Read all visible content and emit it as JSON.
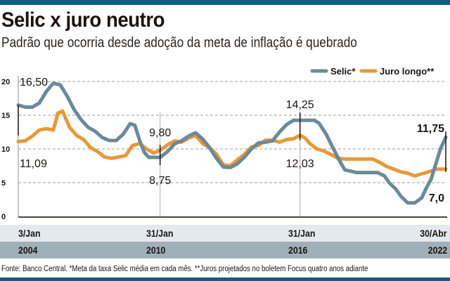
{
  "header": {
    "title": "Selic x juro neutro",
    "subtitle": "Padrão que ocorria desde adoção da meta de inflação é quebrado"
  },
  "footer": {
    "source": "Fonte: Banco Central. *Meta da taxa Selic média em cada mês. **Juros projetados no boletem Focus quatro anos adiante"
  },
  "colors": {
    "brand_bar": "#0d5f86",
    "selic": "#6a8a98",
    "juro_longo": "#e6993a",
    "grid": "#9a9a9a",
    "axis": "#4a4440"
  },
  "chart_data": {
    "type": "line",
    "title": "Selic x juro neutro",
    "subtitle": "Padrão que ocorria desde adoção da meta de inflação é quebrado",
    "xlabel": "",
    "ylabel": "",
    "ylim": [
      0,
      20
    ],
    "xlim": [
      2004.0,
      2022.33
    ],
    "yticks": [
      0,
      5,
      10,
      15,
      20
    ],
    "grid": true,
    "legend": {
      "placement": "top-right",
      "entries": [
        "Selic*",
        "Juro longo**"
      ]
    },
    "x_tick_labels": [
      {
        "date": "3/Jan",
        "year": "2004",
        "x": 2004.0
      },
      {
        "date": "31/Jan",
        "year": "2010",
        "x": 2010.08
      },
      {
        "date": "31/Jan",
        "year": "2016",
        "x": 2016.08
      },
      {
        "date": "30/Abr",
        "year": "2022",
        "x": 2022.33
      }
    ],
    "series": [
      {
        "name": "Selic*",
        "x": [
          2004.0,
          2004.3,
          2004.6,
          2004.9,
          2005.2,
          2005.5,
          2005.8,
          2006.1,
          2006.4,
          2006.7,
          2007.0,
          2007.3,
          2007.6,
          2007.9,
          2008.2,
          2008.5,
          2008.8,
          2009.0,
          2009.2,
          2009.4,
          2009.6,
          2009.9,
          2010.08,
          2010.4,
          2010.7,
          2011.0,
          2011.3,
          2011.6,
          2011.9,
          2012.2,
          2012.5,
          2012.8,
          2013.1,
          2013.4,
          2013.7,
          2014.0,
          2014.3,
          2014.6,
          2014.9,
          2015.2,
          2015.5,
          2015.8,
          2016.08,
          2016.4,
          2016.7,
          2016.9,
          2017.2,
          2017.5,
          2017.8,
          2018.0,
          2018.5,
          2019.0,
          2019.4,
          2019.7,
          2019.9,
          2020.2,
          2020.4,
          2020.7,
          2021.0,
          2021.3,
          2021.5,
          2021.7,
          2021.9,
          2022.1,
          2022.33
        ],
        "values": [
          16.5,
          16.2,
          16.2,
          16.8,
          18.5,
          19.75,
          19.5,
          17.8,
          15.8,
          14.3,
          13.2,
          12.6,
          11.7,
          11.25,
          11.25,
          12.2,
          13.75,
          13.5,
          11.3,
          9.5,
          8.75,
          8.75,
          8.75,
          9.6,
          10.75,
          11.2,
          11.9,
          12.4,
          11.5,
          10.2,
          8.6,
          7.3,
          7.25,
          7.8,
          8.8,
          10.0,
          10.9,
          11.0,
          11.2,
          12.5,
          13.6,
          14.25,
          14.25,
          14.25,
          14.25,
          13.8,
          12.2,
          10.1,
          8.1,
          6.9,
          6.5,
          6.5,
          6.5,
          6.0,
          5.0,
          4.0,
          3.0,
          2.0,
          2.0,
          2.75,
          4.25,
          5.5,
          7.75,
          10.0,
          11.75
        ]
      },
      {
        "name": "Juro longo**",
        "x": [
          2004.0,
          2004.3,
          2004.6,
          2004.9,
          2005.2,
          2005.5,
          2005.7,
          2005.9,
          2006.2,
          2006.5,
          2006.8,
          2007.1,
          2007.4,
          2007.7,
          2008.0,
          2008.3,
          2008.6,
          2008.9,
          2009.2,
          2009.5,
          2009.8,
          2010.08,
          2010.4,
          2010.7,
          2011.0,
          2011.3,
          2011.6,
          2011.9,
          2012.2,
          2012.5,
          2012.8,
          2013.1,
          2013.4,
          2013.7,
          2014.0,
          2014.3,
          2014.6,
          2014.9,
          2015.2,
          2015.5,
          2015.8,
          2016.08,
          2016.3,
          2016.5,
          2016.8,
          2017.1,
          2017.4,
          2017.7,
          2018.0,
          2018.4,
          2018.8,
          2019.2,
          2019.5,
          2019.8,
          2020.1,
          2020.4,
          2020.7,
          2021.0,
          2021.3,
          2021.6,
          2021.9,
          2022.1,
          2022.33
        ],
        "values": [
          11.09,
          11.2,
          11.9,
          12.8,
          13.0,
          12.8,
          15.3,
          15.6,
          13.2,
          12.0,
          11.4,
          10.2,
          9.6,
          8.8,
          8.6,
          8.8,
          9.0,
          10.5,
          10.8,
          10.0,
          9.4,
          9.8,
          10.6,
          11.2,
          11.0,
          11.6,
          12.0,
          10.8,
          10.2,
          9.2,
          7.6,
          7.5,
          8.4,
          9.2,
          10.3,
          10.5,
          11.3,
          11.3,
          11.0,
          11.4,
          11.5,
          12.03,
          11.6,
          10.8,
          10.0,
          9.7,
          9.2,
          8.6,
          8.5,
          8.5,
          8.5,
          8.5,
          8.0,
          7.4,
          7.0,
          6.6,
          6.4,
          6.0,
          6.3,
          6.6,
          7.0,
          7.0,
          7.0
        ]
      }
    ],
    "annotations": [
      {
        "label": "16,50",
        "series": "Selic*",
        "x": 2004.0,
        "value": 16.5
      },
      {
        "label": "11,09",
        "series": "Juro longo**",
        "x": 2004.0,
        "value": 11.09
      },
      {
        "label": "9,80",
        "series": "Juro longo**",
        "x": 2010.08,
        "value": 9.8
      },
      {
        "label": "8,75",
        "series": "Selic*",
        "x": 2010.08,
        "value": 8.75
      },
      {
        "label": "14,25",
        "series": "Selic*",
        "x": 2016.08,
        "value": 14.25
      },
      {
        "label": "12,03",
        "series": "Juro longo**",
        "x": 2016.08,
        "value": 12.03
      },
      {
        "label": "11,75",
        "series": "Selic*",
        "x": 2022.33,
        "value": 11.75
      },
      {
        "label": "7,0",
        "series": "Juro longo**",
        "x": 2022.33,
        "value": 7.0
      }
    ]
  }
}
